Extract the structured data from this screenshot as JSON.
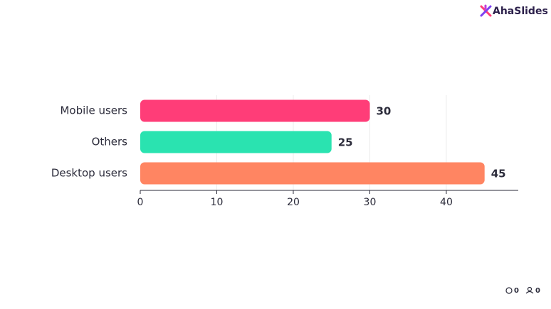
{
  "chart_data": {
    "type": "bar",
    "orientation": "horizontal",
    "categories": [
      "Mobile users",
      "Others",
      "Desktop users"
    ],
    "values": [
      30,
      25,
      45
    ],
    "colors": [
      "#ff3d78",
      "#2ae3b0",
      "#ff8562"
    ],
    "xlim": [
      0,
      49.4
    ],
    "xticks": [
      0,
      10,
      20,
      30,
      40
    ],
    "grid": true
  },
  "brand": "AhaSlides",
  "counters": {
    "comments": 0,
    "participants": 0
  }
}
